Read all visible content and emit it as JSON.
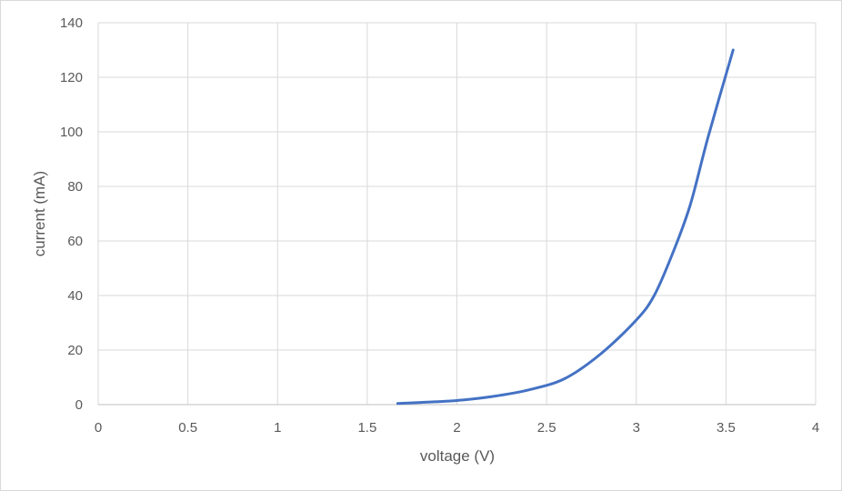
{
  "chart_data": {
    "type": "line",
    "title": "",
    "xlabel": "voltage (V)",
    "ylabel": "current (mA)",
    "xlim": [
      0,
      4
    ],
    "ylim": [
      0,
      140
    ],
    "x_ticks": [
      0,
      0.5,
      1,
      1.5,
      2,
      2.5,
      3,
      3.5,
      4
    ],
    "x_tick_labels": [
      "0",
      "0.5",
      "1",
      "1.5",
      "2",
      "2.5",
      "3",
      "3.5",
      "4"
    ],
    "y_ticks": [
      0,
      20,
      40,
      60,
      80,
      100,
      120,
      140
    ],
    "y_tick_labels": [
      "0",
      "20",
      "40",
      "60",
      "80",
      "100",
      "120",
      "140"
    ],
    "grid": true,
    "legend": "none",
    "series": [
      {
        "color": "#4472c4",
        "points": [
          [
            1.67,
            0.4
          ],
          [
            1.8,
            0.8
          ],
          [
            2.0,
            1.5
          ],
          [
            2.2,
            3.0
          ],
          [
            2.4,
            5.4
          ],
          [
            2.6,
            9.5
          ],
          [
            2.8,
            18.5
          ],
          [
            3.0,
            31.0
          ],
          [
            3.1,
            40.0
          ],
          [
            3.2,
            55.0
          ],
          [
            3.3,
            73.0
          ],
          [
            3.4,
            98.0
          ],
          [
            3.54,
            130.0
          ]
        ]
      }
    ]
  }
}
